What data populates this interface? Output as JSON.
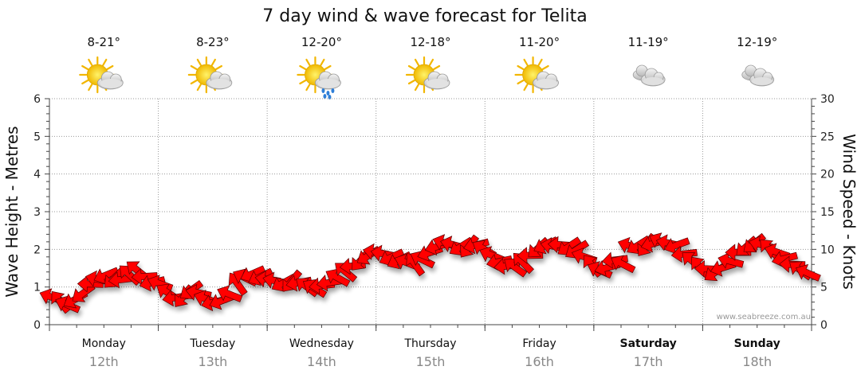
{
  "chart_data": {
    "type": "line",
    "title": "7 day wind & wave forecast for Telita",
    "ylabel_left": "Wave Height - Metres",
    "ylabel_right": "Wind Speed - Knots",
    "ylim_left": [
      0,
      6
    ],
    "ylim_right": [
      0,
      30
    ],
    "yticks_left": [
      "0",
      "1",
      "2",
      "3",
      "4",
      "5",
      "6"
    ],
    "yticks_right": [
      "0",
      "5",
      "10",
      "15",
      "20",
      "25",
      "30"
    ],
    "grid": true,
    "watermark": "www.seabreeze.com.au",
    "days": [
      {
        "name": "Monday",
        "date": "12th",
        "temp": "8-21°",
        "icon": "partly-cloudy-sun-icon",
        "bold": false
      },
      {
        "name": "Tuesday",
        "date": "13th",
        "temp": "8-23°",
        "icon": "partly-cloudy-sun-icon",
        "bold": false
      },
      {
        "name": "Wednesday",
        "date": "14th",
        "temp": "12-20°",
        "icon": "sun-cloud-rain-icon",
        "bold": false
      },
      {
        "name": "Thursday",
        "date": "15th",
        "temp": "12-18°",
        "icon": "partly-cloudy-sun-icon",
        "bold": false
      },
      {
        "name": "Friday",
        "date": "16th",
        "temp": "11-20°",
        "icon": "partly-cloudy-sun-icon",
        "bold": false
      },
      {
        "name": "Saturday",
        "date": "17th",
        "temp": "11-19°",
        "icon": "cloudy-icon",
        "bold": true
      },
      {
        "name": "Sunday",
        "date": "18th",
        "temp": "12-19°",
        "icon": "cloudy-icon",
        "bold": true
      }
    ],
    "series": [
      {
        "units": "knots",
        "color": "#ff0000",
        "values": [
          3.6,
          3.0,
          2.6,
          3.4,
          4.2,
          5.4,
          6.0,
          6.6,
          6.2,
          6.0,
          6.6,
          7.2,
          6.4,
          5.6,
          5.4,
          4.2,
          3.6,
          3.8,
          4.6,
          4.2,
          3.4,
          3.0,
          3.2,
          4.0,
          5.4,
          6.2,
          6.8,
          6.4,
          6.0,
          5.8,
          5.6,
          5.8,
          5.6,
          5.0,
          4.8,
          5.2,
          5.6,
          6.2,
          7.0,
          7.8,
          8.6,
          9.2,
          9.6,
          9.4,
          9.0,
          8.6,
          8.2,
          8.0,
          8.6,
          9.6,
          10.4,
          10.8,
          10.6,
          10.4,
          10.4,
          10.6,
          10.0,
          9.2,
          8.4,
          7.8,
          7.6,
          8.2,
          9.2,
          10.2,
          10.6,
          10.4,
          10.6,
          10.4,
          10.0,
          9.0,
          7.8,
          7.2,
          7.6,
          8.6,
          8.0,
          10.4,
          10.6,
          10.6,
          10.8,
          11.0,
          10.8,
          10.6,
          9.4,
          8.4,
          7.6,
          7.4,
          7.0,
          7.6,
          8.4,
          9.6,
          10.4,
          10.8,
          10.6,
          10.0,
          9.6,
          8.8,
          8.0,
          7.2,
          6.8
        ]
      }
    ]
  }
}
